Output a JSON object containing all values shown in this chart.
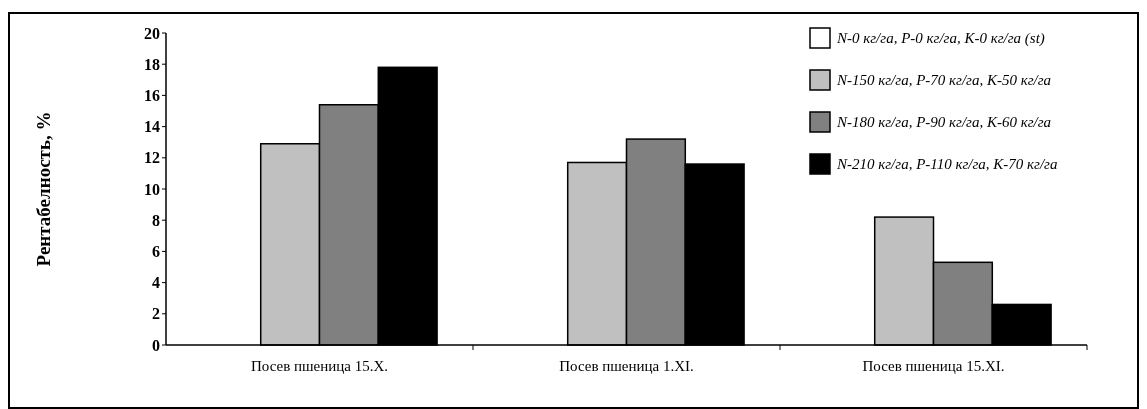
{
  "chart_data": {
    "type": "bar",
    "ylabel": "Рентабелность, %",
    "categories": [
      "Посев пшеница 15.X.",
      "Посев пшеница 1.XI.",
      "Посев пшеница 15.XI."
    ],
    "series": [
      {
        "name": "N-0 кг/га, P-0 кг/га, K-0 кг/га (st)",
        "color": "#ffffff",
        "values": [
          0,
          0,
          0
        ]
      },
      {
        "name": "N-150 кг/га, P-70 кг/га, K-50 кг/га",
        "color": "#c0c0c0",
        "values": [
          12.9,
          11.7,
          8.2
        ]
      },
      {
        "name": "N-180 кг/га, P-90 кг/га, K-60 кг/га",
        "color": "#808080",
        "values": [
          15.4,
          13.2,
          5.3
        ]
      },
      {
        "name": "N-210 кг/га, P-110 кг/га, K-70 кг/га",
        "color": "#000000",
        "values": [
          17.8,
          11.6,
          2.6
        ]
      }
    ],
    "ylim": [
      0,
      20
    ],
    "yticks": [
      0,
      2,
      4,
      6,
      8,
      10,
      12,
      14,
      16,
      18,
      20
    ],
    "grid": false,
    "legend": "top right"
  }
}
